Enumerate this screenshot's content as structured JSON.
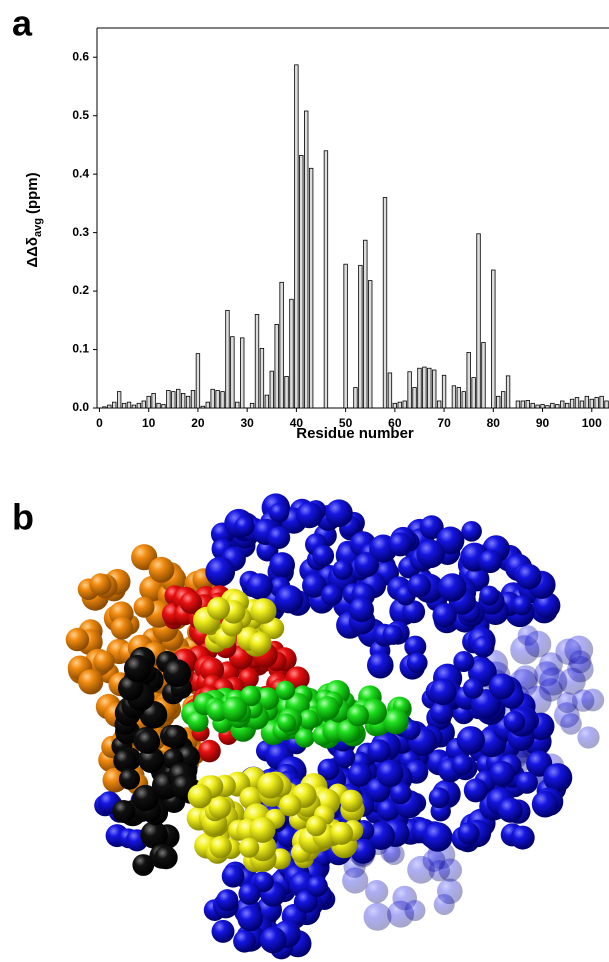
{
  "panels": {
    "a": "a",
    "b": "b"
  },
  "chart_data": {
    "type": "bar",
    "x_label": "Residue number",
    "y_label": {
      "main": "ΔΔδ",
      "sub": "avg",
      "unit": "(ppm)"
    },
    "x": [
      1,
      2,
      3,
      4,
      5,
      6,
      7,
      8,
      9,
      10,
      11,
      12,
      13,
      14,
      15,
      16,
      17,
      18,
      19,
      20,
      21,
      22,
      23,
      24,
      25,
      26,
      27,
      28,
      29,
      30,
      31,
      32,
      33,
      34,
      35,
      36,
      37,
      38,
      39,
      40,
      41,
      42,
      43,
      44,
      45,
      46,
      47,
      48,
      49,
      50,
      51,
      52,
      53,
      54,
      55,
      56,
      57,
      58,
      59,
      60,
      61,
      62,
      63,
      64,
      65,
      66,
      67,
      68,
      69,
      70,
      71,
      72,
      73,
      74,
      75,
      76,
      77,
      78,
      79,
      80,
      81,
      82,
      83,
      84,
      85,
      86,
      87,
      88,
      89,
      90,
      91,
      92,
      93,
      94,
      95,
      96,
      97,
      98,
      99,
      100,
      101,
      102,
      103
    ],
    "values": [
      0.002,
      0.005,
      0.01,
      0.028,
      0.008,
      0.01,
      0.005,
      0.008,
      0.012,
      0.02,
      0.025,
      0.008,
      0.006,
      0.03,
      0.028,
      0.032,
      0.025,
      0.02,
      0.03,
      0.093,
      0.003,
      0.01,
      0.032,
      0.03,
      0.028,
      0.167,
      0.122,
      0.01,
      0.12,
      null,
      0.008,
      0.16,
      0.102,
      0.022,
      0.063,
      0.143,
      0.215,
      0.054,
      0.186,
      0.587,
      0.432,
      0.508,
      0.41,
      null,
      null,
      0.44,
      null,
      null,
      null,
      0.246,
      null,
      0.035,
      0.244,
      0.287,
      0.218,
      null,
      null,
      0.36,
      0.06,
      0.008,
      0.01,
      0.012,
      0.062,
      0.035,
      0.068,
      0.07,
      0.068,
      0.065,
      0.012,
      0.056,
      null,
      0.038,
      0.035,
      0.028,
      0.095,
      0.052,
      0.298,
      0.112,
      null,
      0.236,
      0.02,
      0.028,
      0.055,
      null,
      0.012,
      0.012,
      0.013,
      0.008,
      0.005,
      0.006,
      0.004,
      0.008,
      0.006,
      0.012,
      0.008,
      0.015,
      0.018,
      0.012,
      0.02,
      0.015,
      0.018,
      0.02,
      0.012
    ],
    "color": "#dcdcdc",
    "xlim": [
      -0.5,
      103.5
    ],
    "xticks": [
      0,
      10,
      20,
      30,
      40,
      50,
      60,
      70,
      80,
      90,
      100
    ],
    "ylim": [
      0,
      0.65
    ],
    "yticks": [
      {
        "value": 0,
        "label": "0.0"
      },
      {
        "value": 0.1,
        "label": "0.1"
      },
      {
        "value": 0.2,
        "label": "0.2"
      },
      {
        "value": 0.3,
        "label": "0.3"
      },
      {
        "value": 0.4,
        "label": "0.4"
      },
      {
        "value": 0.5,
        "label": "0.5"
      },
      {
        "value": 0.6,
        "label": "0.6"
      }
    ]
  }
}
